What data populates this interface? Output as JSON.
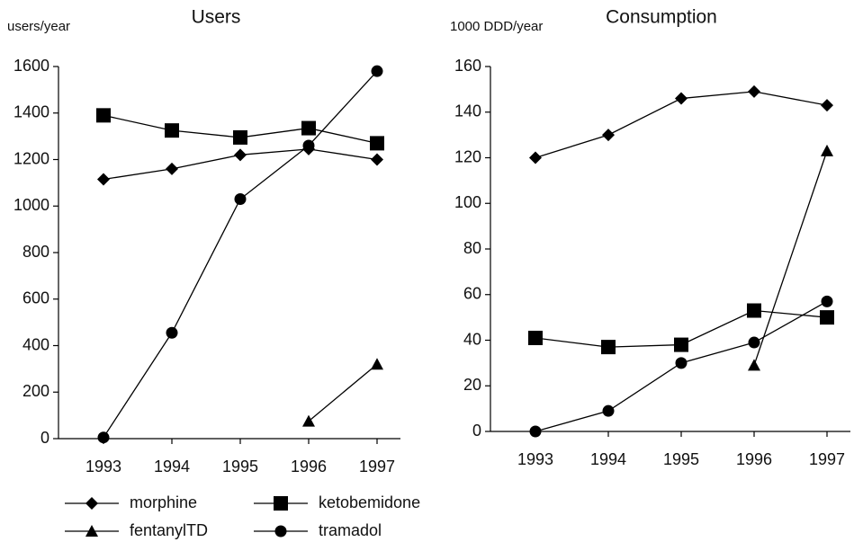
{
  "chart_data": [
    {
      "type": "line",
      "title": "Users",
      "y_label": "users/year",
      "categories": [
        "1993",
        "1994",
        "1995",
        "1996",
        "1997"
      ],
      "ylim": [
        0,
        1600
      ],
      "yticks": [
        0,
        200,
        400,
        600,
        800,
        1000,
        1200,
        1400,
        1600
      ],
      "series": [
        {
          "name": "morphine",
          "color": "#000000",
          "marker": "diamond",
          "values": [
            1115,
            1160,
            1220,
            1245,
            1200
          ]
        },
        {
          "name": "ketobemidone",
          "color": "#000000",
          "marker": "square",
          "values": [
            1390,
            1325,
            1295,
            1335,
            1270
          ]
        },
        {
          "name": "fentanylTD",
          "color": "#000000",
          "marker": "triangle",
          "values": [
            null,
            null,
            null,
            75,
            320
          ]
        },
        {
          "name": "tramadol",
          "color": "#000000",
          "marker": "circle",
          "values": [
            5,
            455,
            1030,
            1260,
            1580
          ]
        }
      ]
    },
    {
      "type": "line",
      "title": "Consumption",
      "y_label": "1000 DDD/year",
      "categories": [
        "1993",
        "1994",
        "1995",
        "1996",
        "1997"
      ],
      "ylim": [
        0,
        160
      ],
      "yticks": [
        0,
        20,
        40,
        60,
        80,
        100,
        120,
        140,
        160
      ],
      "series": [
        {
          "color": "#000000",
          "marker": "diamond",
          "values": [
            120,
            130,
            146,
            149,
            143
          ]
        },
        {
          "color": "#000000",
          "marker": "square",
          "values": [
            41,
            37,
            38,
            53,
            50
          ]
        },
        {
          "color": "#000000",
          "marker": "triangle",
          "values": [
            null,
            null,
            null,
            29,
            123
          ]
        },
        {
          "color": "#000000",
          "marker": "circle",
          "values": [
            0,
            9,
            30,
            39,
            57
          ]
        }
      ]
    }
  ]
}
